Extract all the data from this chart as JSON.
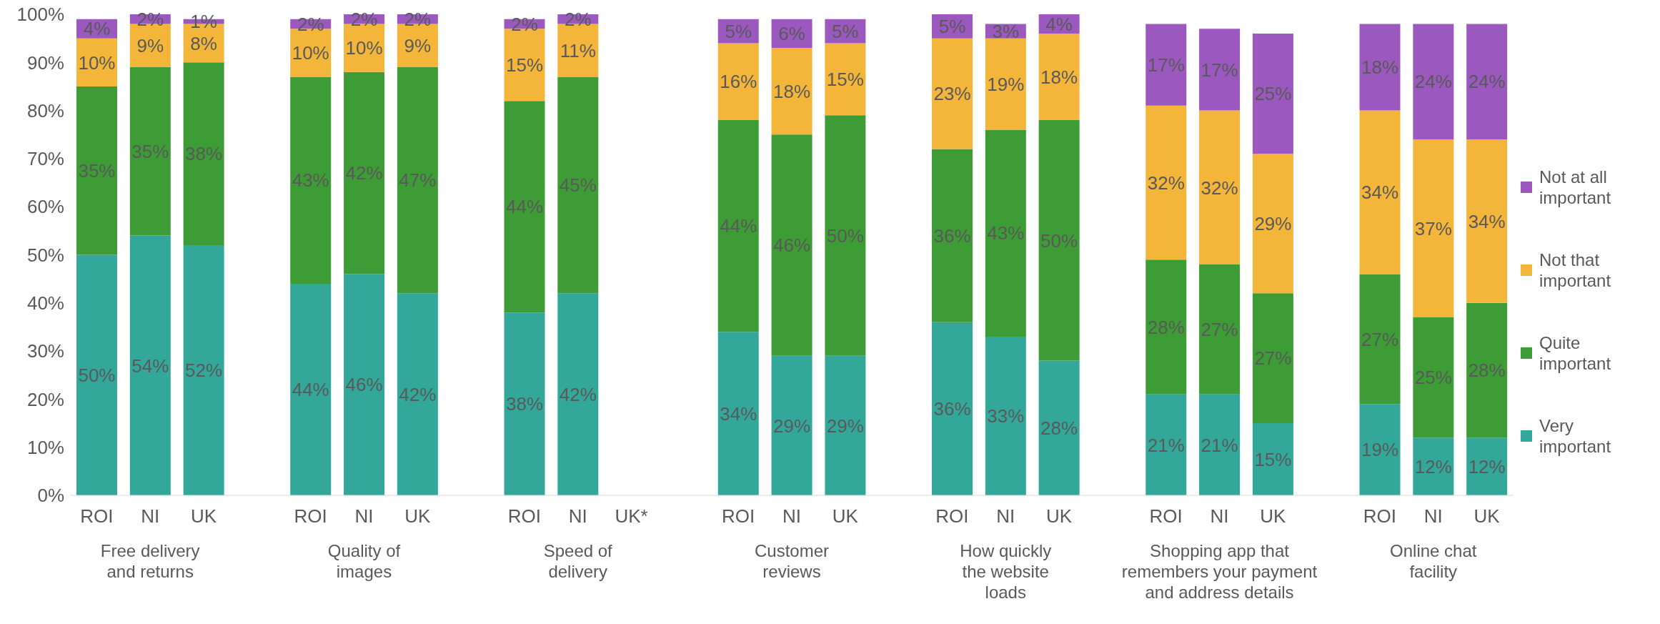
{
  "chart_data": {
    "type": "bar",
    "stacked": true,
    "legend": "right",
    "grid": false,
    "categories": [
      "ROI",
      "NI",
      "UK",
      null,
      "ROI",
      "NI",
      "UK",
      null,
      "ROI",
      "NI",
      "UK*",
      null,
      "ROI",
      "NI",
      "UK",
      null,
      "ROI",
      "NI",
      "UK",
      null,
      "ROI",
      "NI",
      "UK",
      null,
      "ROI",
      "NI",
      "UK"
    ],
    "annotations": [
      "Free delivery\nand returns",
      "Quality of\nimages",
      "Speed of\ndelivery",
      "Customer\nreviews",
      "How quickly\nthe website\nloads",
      "Shopping app that\nremembers your payment\nand address details",
      "Online chat\nfacility"
    ],
    "ylim": [
      0,
      100
    ],
    "yticks": [
      {
        "value": 0,
        "label": "0%"
      },
      {
        "value": 10,
        "label": "10%"
      },
      {
        "value": 20,
        "label": "20%"
      },
      {
        "value": 30,
        "label": "30%"
      },
      {
        "value": 40,
        "label": "40%"
      },
      {
        "value": 50,
        "label": "50%"
      },
      {
        "value": 60,
        "label": "60%"
      },
      {
        "value": 70,
        "label": "70%"
      },
      {
        "value": 80,
        "label": "80%"
      },
      {
        "value": 90,
        "label": "90%"
      },
      {
        "value": 100,
        "label": "100%"
      }
    ],
    "series": [
      {
        "name": "Very important",
        "color": "#33a89a",
        "values": [
          50,
          54,
          52,
          null,
          44,
          46,
          42,
          null,
          38,
          42,
          null,
          null,
          34,
          29,
          29,
          null,
          36,
          33,
          28,
          null,
          21,
          21,
          15,
          null,
          19,
          12,
          12
        ],
        "value_labels": [
          "50%",
          "54%",
          "52%",
          null,
          "44%",
          "46%",
          "42%",
          null,
          "38%",
          "42%",
          null,
          null,
          "34%",
          "29%",
          "29%",
          null,
          "36%",
          "33%",
          "28%",
          null,
          "21%",
          "21%",
          "15%",
          null,
          "19%",
          "12%",
          "12%"
        ]
      },
      {
        "name": "Quite important",
        "color": "#3d9c35",
        "values": [
          35,
          35,
          38,
          null,
          43,
          42,
          47,
          null,
          44,
          45,
          null,
          null,
          44,
          46,
          50,
          null,
          36,
          43,
          50,
          null,
          28,
          27,
          27,
          null,
          27,
          25,
          28
        ],
        "value_labels": [
          "35%",
          "35%",
          "38%",
          null,
          "43%",
          "42%",
          "47%",
          null,
          "44%",
          "45%",
          null,
          null,
          "44%",
          "46%",
          "50%",
          null,
          "36%",
          "43%",
          "50%",
          null,
          "28%",
          "27%",
          "27%",
          null,
          "27%",
          "25%",
          "28%"
        ]
      },
      {
        "name": "Not that important",
        "color": "#f4b63a",
        "values": [
          10,
          9,
          8,
          null,
          10,
          10,
          9,
          null,
          15,
          11,
          null,
          null,
          16,
          18,
          15,
          null,
          23,
          19,
          18,
          null,
          32,
          32,
          29,
          null,
          34,
          37,
          34
        ],
        "value_labels": [
          "10%",
          "9%",
          "8%",
          null,
          "10%",
          "10%",
          "9%",
          null,
          "15%",
          "11%",
          null,
          null,
          "16%",
          "18%",
          "15%",
          null,
          "23%",
          "19%",
          "18%",
          null,
          "32%",
          "32%",
          "29%",
          null,
          "34%",
          "37%",
          "34%"
        ]
      },
      {
        "name": "Not at all important",
        "color": "#9b59c0",
        "values": [
          4,
          2,
          1,
          null,
          2,
          2,
          2,
          null,
          2,
          2,
          null,
          null,
          5,
          6,
          5,
          null,
          5,
          3,
          4,
          null,
          17,
          17,
          25,
          null,
          18,
          24,
          24
        ],
        "value_labels": [
          "4%",
          "2%",
          "1%",
          null,
          "2%",
          "2%",
          "2%",
          null,
          "2%",
          "2%",
          null,
          null,
          "5%",
          "6%",
          "5%",
          null,
          "5%",
          "3%",
          "4%",
          null,
          "17%",
          "17%",
          "25%",
          null,
          "18%",
          "24%",
          "24%"
        ]
      }
    ]
  }
}
